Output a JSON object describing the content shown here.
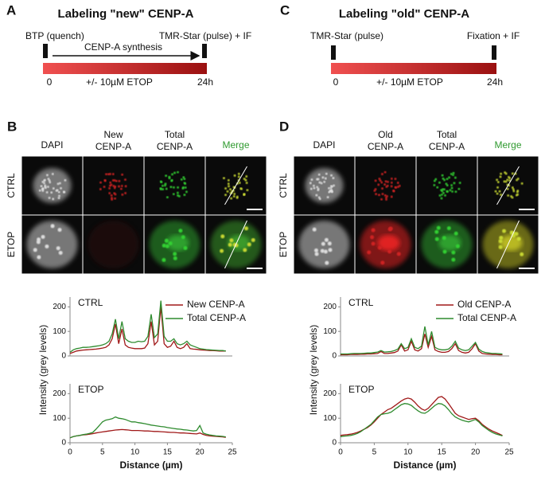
{
  "panels": {
    "A": {
      "label": "A",
      "title": "Labeling \"new\" CENP-A",
      "left_label": "BTP (quench)",
      "arrow_label": "CENP-A synthesis",
      "right_label": "TMR-Star (pulse) + IF",
      "start": "0",
      "treatment": "+/- 10µM ETOP",
      "end": "24h"
    },
    "C": {
      "label": "C",
      "title": "Labeling \"old\" CENP-A",
      "left_label": "TMR-Star (pulse)",
      "right_label": "Fixation + IF",
      "start": "0",
      "treatment": "+/- 10µM ETOP",
      "end": "24h"
    },
    "B": {
      "label": "B",
      "columns": [
        "DAPI",
        [
          "New",
          "CENP-A"
        ],
        [
          "Total",
          "CENP-A"
        ],
        "Merge"
      ],
      "rows": [
        "CTRL",
        "ETOP"
      ]
    },
    "D": {
      "label": "D",
      "columns": [
        "DAPI",
        [
          "Old",
          "CENP-A"
        ],
        [
          "Total",
          "CENP-A"
        ],
        "Merge"
      ],
      "rows": [
        "CTRL",
        "ETOP"
      ]
    }
  },
  "chart_data": [
    {
      "type": "line",
      "title": "CTRL",
      "xlim": [
        0,
        25
      ],
      "ylim": [
        0,
        240
      ],
      "yticks": [
        0,
        100,
        200
      ],
      "x": [
        0,
        0.5,
        1,
        1.5,
        2,
        2.5,
        3,
        3.5,
        4,
        4.5,
        5,
        5.5,
        6,
        6.5,
        7,
        7.5,
        8,
        8.5,
        9,
        9.5,
        10,
        10.5,
        11,
        11.5,
        12,
        12.5,
        13,
        13.5,
        14,
        14.5,
        15,
        15.5,
        16,
        16.5,
        17,
        17.5,
        18,
        18.5,
        19,
        19.5,
        20,
        20.5,
        21,
        21.5,
        22,
        22.5,
        23,
        23.5,
        24
      ],
      "series": [
        {
          "name": "New CENP-A",
          "color": "#a01818",
          "values": [
            10,
            15,
            20,
            22,
            24,
            25,
            26,
            27,
            28,
            30,
            32,
            35,
            45,
            70,
            130,
            50,
            110,
            45,
            35,
            32,
            30,
            30,
            30,
            32,
            50,
            140,
            45,
            60,
            200,
            50,
            35,
            40,
            60,
            35,
            30,
            35,
            50,
            30,
            28,
            27,
            25,
            24,
            23,
            22,
            22,
            21,
            20,
            20,
            20
          ]
        },
        {
          "name": "Total CENP-A",
          "color": "#2e8b2e",
          "values": [
            15,
            25,
            30,
            32,
            35,
            35,
            36,
            38,
            40,
            42,
            45,
            50,
            60,
            90,
            150,
            70,
            140,
            70,
            60,
            55,
            55,
            60,
            58,
            60,
            80,
            170,
            75,
            90,
            225,
            80,
            60,
            60,
            70,
            50,
            45,
            50,
            60,
            45,
            40,
            35,
            30,
            28,
            26,
            25,
            24,
            23,
            22,
            22,
            20
          ]
        }
      ]
    },
    {
      "type": "line",
      "title": "ETOP",
      "xlim": [
        0,
        25
      ],
      "ylim": [
        0,
        240
      ],
      "yticks": [
        0,
        100,
        200
      ],
      "xticks": [
        0,
        5,
        10,
        15,
        20,
        25
      ],
      "y_label": "Intensity (grey levels)",
      "x_label": "Distance (µm)",
      "x": [
        0,
        0.5,
        1,
        1.5,
        2,
        2.5,
        3,
        3.5,
        4,
        4.5,
        5,
        5.5,
        6,
        6.5,
        7,
        7.5,
        8,
        8.5,
        9,
        9.5,
        10,
        10.5,
        11,
        11.5,
        12,
        12.5,
        13,
        13.5,
        14,
        14.5,
        15,
        15.5,
        16,
        16.5,
        17,
        17.5,
        18,
        18.5,
        19,
        19.5,
        20,
        20.5,
        21,
        21.5,
        22,
        22.5,
        23,
        23.5,
        24
      ],
      "series": [
        {
          "color": "#a01818",
          "values": [
            20,
            25,
            28,
            30,
            32,
            33,
            35,
            37,
            40,
            42,
            44,
            46,
            48,
            50,
            52,
            53,
            54,
            53,
            52,
            50,
            50,
            50,
            49,
            48,
            48,
            47,
            46,
            46,
            45,
            44,
            43,
            42,
            42,
            41,
            40,
            40,
            39,
            38,
            37,
            36,
            40,
            34,
            30,
            28,
            27,
            26,
            25,
            24,
            22
          ]
        },
        {
          "color": "#2e8b2e",
          "values": [
            20,
            25,
            28,
            30,
            33,
            35,
            38,
            42,
            55,
            70,
            85,
            92,
            95,
            98,
            105,
            100,
            98,
            95,
            90,
            85,
            85,
            82,
            80,
            78,
            75,
            72,
            70,
            68,
            66,
            65,
            62,
            60,
            58,
            56,
            55,
            53,
            52,
            50,
            48,
            50,
            70,
            40,
            35,
            32,
            30,
            28,
            27,
            26,
            24
          ]
        }
      ]
    },
    {
      "type": "line",
      "title": "CTRL",
      "xlim": [
        0,
        25
      ],
      "ylim": [
        0,
        240
      ],
      "yticks": [
        0,
        100,
        200
      ],
      "x": [
        0,
        0.5,
        1,
        1.5,
        2,
        2.5,
        3,
        3.5,
        4,
        4.5,
        5,
        5.5,
        6,
        6.5,
        7,
        7.5,
        8,
        8.5,
        9,
        9.5,
        10,
        10.5,
        11,
        11.5,
        12,
        12.5,
        13,
        13.5,
        14,
        14.5,
        15,
        15.5,
        16,
        16.5,
        17,
        17.5,
        18,
        18.5,
        19,
        19.5,
        20,
        20.5,
        21,
        21.5,
        22,
        22.5,
        23,
        23.5,
        24
      ],
      "series": [
        {
          "name": "Old CENP-A",
          "color": "#a01818",
          "values": [
            5,
            5,
            5,
            6,
            6,
            6,
            7,
            7,
            8,
            8,
            9,
            10,
            18,
            10,
            10,
            12,
            14,
            20,
            45,
            20,
            25,
            60,
            25,
            20,
            30,
            90,
            35,
            80,
            25,
            18,
            15,
            15,
            18,
            30,
            50,
            22,
            15,
            12,
            15,
            30,
            50,
            20,
            10,
            8,
            7,
            6,
            6,
            5,
            5
          ]
        },
        {
          "name": "Total CENP-A",
          "color": "#2e8b2e",
          "values": [
            8,
            8,
            8,
            9,
            10,
            10,
            10,
            11,
            12,
            12,
            14,
            16,
            22,
            16,
            17,
            18,
            22,
            28,
            50,
            30,
            35,
            70,
            35,
            30,
            40,
            120,
            45,
            100,
            35,
            28,
            25,
            25,
            28,
            40,
            60,
            32,
            25,
            22,
            25,
            40,
            55,
            28,
            18,
            14,
            12,
            10,
            10,
            9,
            8
          ]
        }
      ]
    },
    {
      "type": "line",
      "title": "ETOP",
      "xlim": [
        0,
        25
      ],
      "ylim": [
        0,
        240
      ],
      "yticks": [
        0,
        100,
        200
      ],
      "xticks": [
        0,
        5,
        10,
        15,
        20,
        25
      ],
      "y_label": "Intensity (grey levels)",
      "x_label": "Distance (µm)",
      "x": [
        0,
        0.5,
        1,
        1.5,
        2,
        2.5,
        3,
        3.5,
        4,
        4.5,
        5,
        5.5,
        6,
        6.5,
        7,
        7.5,
        8,
        8.5,
        9,
        9.5,
        10,
        10.5,
        11,
        11.5,
        12,
        12.5,
        13,
        13.5,
        14,
        14.5,
        15,
        15.5,
        16,
        16.5,
        17,
        17.5,
        18,
        18.5,
        19,
        19.5,
        20,
        20.5,
        21,
        21.5,
        22,
        22.5,
        23,
        23.5,
        24
      ],
      "series": [
        {
          "color": "#a01818",
          "values": [
            30,
            32,
            33,
            35,
            38,
            42,
            48,
            55,
            62,
            72,
            85,
            100,
            115,
            125,
            135,
            140,
            150,
            160,
            170,
            178,
            182,
            178,
            165,
            150,
            138,
            132,
            140,
            155,
            170,
            185,
            188,
            178,
            160,
            140,
            120,
            110,
            105,
            100,
            95,
            98,
            100,
            90,
            75,
            65,
            55,
            48,
            42,
            36,
            30
          ]
        },
        {
          "color": "#2e8b2e",
          "values": [
            25,
            27,
            28,
            30,
            33,
            38,
            45,
            55,
            65,
            75,
            90,
            105,
            115,
            118,
            120,
            125,
            135,
            145,
            155,
            160,
            158,
            152,
            140,
            130,
            122,
            120,
            128,
            140,
            152,
            160,
            158,
            150,
            135,
            118,
            105,
            98,
            92,
            88,
            85,
            90,
            95,
            85,
            70,
            60,
            50,
            42,
            36,
            32,
            28
          ]
        }
      ]
    }
  ]
}
